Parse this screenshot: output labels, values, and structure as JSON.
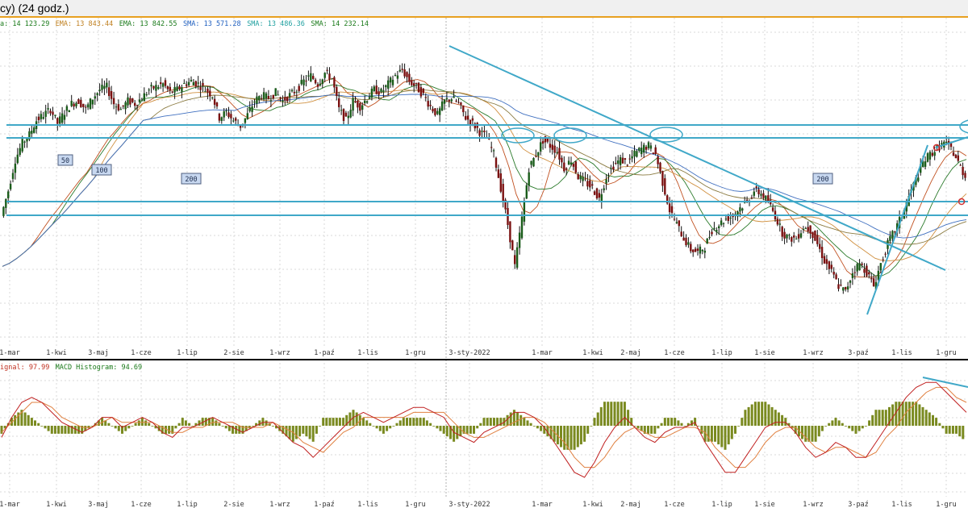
{
  "window": {
    "title": "cy) (24 godz.)"
  },
  "main_panel": {
    "legend": [
      {
        "text": "a: 14 123.29",
        "color": "#1a7a1a"
      },
      {
        "text": "EMA: 13 843.44",
        "color": "#c08020"
      },
      {
        "text": "EMA: 13 842.55",
        "color": "#1a7a1a"
      },
      {
        "text": "SMA: 13 571.28",
        "color": "#2060c0"
      },
      {
        "text": "SMA: 13 486.36",
        "color": "#20a0a0"
      },
      {
        "text": "SMA: 14 232.14",
        "color": "#1a7a1a"
      }
    ],
    "ma_labels": [
      "50",
      "100",
      "200",
      "200"
    ],
    "xaxis_labels": [
      "1-mar",
      "1-kwi",
      "3-maj",
      "1-cze",
      "1-lip",
      "2-sie",
      "1-wrz",
      "1-paź",
      "1-lis",
      "1-gru",
      "3-sty-2022",
      "1-mar",
      "1-kwi",
      "2-maj",
      "1-cze",
      "1-lip",
      "1-sie",
      "1-wrz",
      "3-paź",
      "1-lis",
      "1-gru"
    ]
  },
  "macd_panel": {
    "legend": [
      {
        "text": "ignal: 97.99",
        "color": "#c03020"
      },
      {
        "text": "MACD Histogram: 94.69",
        "color": "#1a7a1a"
      }
    ],
    "xaxis_labels": [
      "1-mar",
      "1-kwi",
      "3-maj",
      "1-cze",
      "1-lip",
      "2-sie",
      "1-wrz",
      "1-paź",
      "1-lis",
      "1-gru",
      "3-sty-2022",
      "1-mar",
      "1-kwi",
      "2-maj",
      "1-cze",
      "1-lip",
      "1-sie",
      "1-wrz",
      "3-paź",
      "1-lis",
      "1-gru"
    ]
  },
  "colors": {
    "candle_up": "#1a5c1a",
    "candle_down": "#7a1010",
    "trend_line": "#40a8c8",
    "ma50": "#c05020",
    "ma100": "#2a7a2a",
    "ma200": "#4070c0",
    "ma_orange": "#d09040",
    "macd_line": "#c02020",
    "signal_line": "#e08040",
    "histogram": "#7a8a20",
    "grid": "#d8d8d8"
  },
  "chart_data": [
    {
      "type": "candlestick",
      "title": "",
      "x_range": [
        "2021-03-01",
        "2022-12-15"
      ],
      "y_range_relative": [
        0,
        1
      ],
      "close_series": [
        0.38,
        0.47,
        0.58,
        0.64,
        0.67,
        0.72,
        0.74,
        0.76,
        0.71,
        0.75,
        0.78,
        0.79,
        0.76,
        0.8,
        0.83,
        0.84,
        0.78,
        0.76,
        0.79,
        0.78,
        0.8,
        0.83,
        0.84,
        0.85,
        0.82,
        0.83,
        0.85,
        0.86,
        0.85,
        0.83,
        0.81,
        0.73,
        0.75,
        0.72,
        0.7,
        0.74,
        0.79,
        0.81,
        0.8,
        0.82,
        0.79,
        0.81,
        0.83,
        0.86,
        0.88,
        0.85,
        0.89,
        0.87,
        0.76,
        0.72,
        0.79,
        0.77,
        0.8,
        0.83,
        0.82,
        0.85,
        0.88,
        0.9,
        0.86,
        0.84,
        0.81,
        0.77,
        0.74,
        0.79,
        0.8,
        0.78,
        0.73,
        0.71,
        0.68,
        0.66,
        0.6,
        0.48,
        0.35,
        0.2,
        0.37,
        0.55,
        0.6,
        0.65,
        0.63,
        0.61,
        0.55,
        0.58,
        0.52,
        0.5,
        0.48,
        0.44,
        0.52,
        0.56,
        0.58,
        0.57,
        0.6,
        0.62,
        0.63,
        0.6,
        0.5,
        0.4,
        0.35,
        0.3,
        0.26,
        0.25,
        0.27,
        0.33,
        0.35,
        0.37,
        0.38,
        0.41,
        0.43,
        0.47,
        0.46,
        0.43,
        0.38,
        0.32,
        0.3,
        0.3,
        0.34,
        0.33,
        0.28,
        0.22,
        0.18,
        0.13,
        0.11,
        0.18,
        0.21,
        0.18,
        0.13,
        0.21,
        0.28,
        0.33,
        0.38,
        0.45,
        0.51,
        0.57,
        0.6,
        0.62,
        0.64,
        0.62,
        0.57,
        0.52
      ]
    },
    {
      "type": "line",
      "title": "MACD",
      "series": [
        {
          "name": "Signal",
          "value": 97.99
        },
        {
          "name": "MACD Histogram",
          "value": 94.69
        }
      ],
      "macd_series": [
        -0.2,
        0.2,
        0.5,
        0.6,
        0.5,
        0.3,
        0.1,
        0.0,
        -0.1,
        0.0,
        0.2,
        0.2,
        0.0,
        0.1,
        0.2,
        0.1,
        -0.1,
        -0.2,
        0.0,
        0.0,
        0.1,
        0.2,
        0.1,
        0.0,
        -0.1,
        0.0,
        0.1,
        0.1,
        -0.1,
        -0.3,
        -0.4,
        -0.6,
        -0.4,
        -0.2,
        0.0,
        0.2,
        0.3,
        0.2,
        0.1,
        0.2,
        0.3,
        0.4,
        0.4,
        0.3,
        0.2,
        -0.1,
        -0.2,
        -0.3,
        -0.1,
        0.0,
        0.1,
        0.3,
        0.3,
        0.2,
        0.0,
        -0.3,
        -0.6,
        -0.9,
        -1.0,
        -0.7,
        -0.3,
        0.0,
        0.2,
        0.0,
        -0.2,
        -0.3,
        -0.1,
        0.0,
        0.0,
        0.1,
        -0.3,
        -0.6,
        -0.9,
        -0.9,
        -0.6,
        -0.3,
        0.0,
        0.1,
        0.1,
        -0.1,
        -0.4,
        -0.6,
        -0.5,
        -0.3,
        -0.4,
        -0.6,
        -0.6,
        -0.3,
        0.0,
        0.3,
        0.6,
        0.8,
        0.9,
        0.9,
        0.7,
        0.5,
        0.3
      ],
      "signal_series": [
        -0.1,
        0.1,
        0.3,
        0.5,
        0.5,
        0.4,
        0.2,
        0.1,
        0.0,
        0.0,
        0.1,
        0.2,
        0.1,
        0.1,
        0.1,
        0.1,
        0.0,
        -0.1,
        -0.1,
        0.0,
        0.0,
        0.1,
        0.1,
        0.1,
        0.0,
        0.0,
        0.0,
        0.1,
        0.0,
        -0.1,
        -0.3,
        -0.4,
        -0.5,
        -0.3,
        -0.1,
        0.0,
        0.2,
        0.2,
        0.2,
        0.2,
        0.2,
        0.3,
        0.3,
        0.3,
        0.3,
        0.1,
        -0.1,
        -0.2,
        -0.2,
        -0.1,
        0.0,
        0.1,
        0.2,
        0.2,
        0.1,
        -0.1,
        -0.3,
        -0.6,
        -0.8,
        -0.8,
        -0.6,
        -0.3,
        -0.1,
        0.0,
        -0.1,
        -0.2,
        -0.2,
        -0.1,
        0.0,
        0.0,
        -0.1,
        -0.4,
        -0.6,
        -0.8,
        -0.8,
        -0.6,
        -0.3,
        -0.1,
        0.0,
        0.0,
        -0.2,
        -0.4,
        -0.5,
        -0.4,
        -0.4,
        -0.5,
        -0.6,
        -0.5,
        -0.2,
        0.0,
        0.3,
        0.5,
        0.7,
        0.8,
        0.8,
        0.6,
        0.5
      ]
    }
  ]
}
